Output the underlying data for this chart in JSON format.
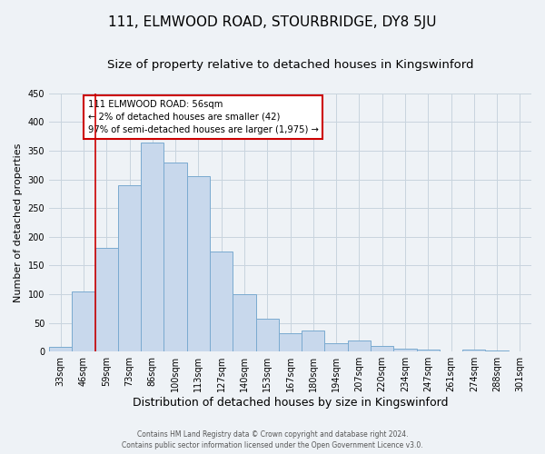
{
  "title": "111, ELMWOOD ROAD, STOURBRIDGE, DY8 5JU",
  "subtitle": "Size of property relative to detached houses in Kingswinford",
  "xlabel": "Distribution of detached houses by size in Kingswinford",
  "ylabel": "Number of detached properties",
  "bar_labels": [
    "33sqm",
    "46sqm",
    "59sqm",
    "73sqm",
    "86sqm",
    "100sqm",
    "113sqm",
    "127sqm",
    "140sqm",
    "153sqm",
    "167sqm",
    "180sqm",
    "194sqm",
    "207sqm",
    "220sqm",
    "234sqm",
    "247sqm",
    "261sqm",
    "274sqm",
    "288sqm",
    "301sqm"
  ],
  "bar_values": [
    8,
    105,
    180,
    290,
    365,
    330,
    305,
    175,
    100,
    57,
    32,
    36,
    15,
    19,
    10,
    5,
    4,
    1,
    4,
    2,
    1
  ],
  "bar_color": "#c8d8ec",
  "bar_edge_color": "#7aaad0",
  "vline_index": 2,
  "vline_color": "#cc0000",
  "annotation_title": "111 ELMWOOD ROAD: 56sqm",
  "annotation_line1": "← 2% of detached houses are smaller (42)",
  "annotation_line2": "97% of semi-detached houses are larger (1,975) →",
  "annotation_box_color": "#ffffff",
  "annotation_box_edge": "#cc0000",
  "ylim": [
    0,
    450
  ],
  "grid_color": "#c8d4de",
  "footer_line1": "Contains HM Land Registry data © Crown copyright and database right 2024.",
  "footer_line2": "Contains public sector information licensed under the Open Government Licence v3.0.",
  "bg_color": "#eef2f6",
  "title_fontsize": 11,
  "subtitle_fontsize": 9.5,
  "xlabel_fontsize": 9,
  "ylabel_fontsize": 8,
  "tick_fontsize": 7,
  "footer_fontsize": 5.5
}
